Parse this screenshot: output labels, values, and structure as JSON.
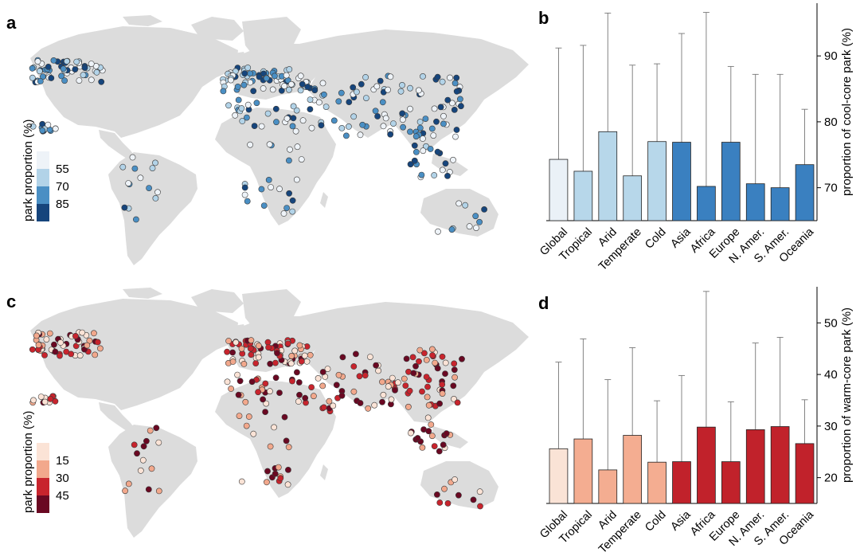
{
  "panel_labels": {
    "a": "a",
    "b": "b",
    "c": "c",
    "d": "d"
  },
  "legend_a": {
    "title": "park proportion (%)",
    "ticks": [
      "55",
      "70",
      "85"
    ],
    "colors": [
      "#eef3f8",
      "#b2d3e8",
      "#4a8fc4",
      "#16457c"
    ]
  },
  "legend_c": {
    "title": "park proportion (%)",
    "ticks": [
      "15",
      "30",
      "45"
    ],
    "colors": [
      "#fbe3d6",
      "#f2a88c",
      "#c8242d",
      "#6a0822"
    ]
  },
  "map_colors": {
    "land": "#dcdcdc",
    "marker_edge": "#3a3a3a"
  },
  "chart_data": [
    {
      "type": "bar",
      "panel": "b",
      "categories": [
        "Global",
        "Tropical",
        "Arid",
        "Temperate",
        "Cold",
        "Asia",
        "Africa",
        "Europe",
        "N. Amer.",
        "S. Amer.",
        "Oceania"
      ],
      "values": [
        74.3,
        72.5,
        78.5,
        71.8,
        77.0,
        76.9,
        70.2,
        76.9,
        70.6,
        70.0,
        73.5
      ],
      "error_upper": [
        91.2,
        91.6,
        96.5,
        88.6,
        88.8,
        93.4,
        96.6,
        88.4,
        87.2,
        87.2,
        81.9
      ],
      "colors": [
        "#eaf1f7",
        "#b7d7ea",
        "#b7d7ea",
        "#b7d7ea",
        "#b7d7ea",
        "#3a80c0",
        "#3a80c0",
        "#3a80c0",
        "#3a80c0",
        "#3a80c0",
        "#3a80c0"
      ],
      "ylabel": "proportion of cool-core park (%)",
      "ylim": [
        65,
        98
      ],
      "yticks": [
        70,
        80,
        90
      ],
      "grid": false
    },
    {
      "type": "bar",
      "panel": "d",
      "categories": [
        "Global",
        "Tropical",
        "Arid",
        "Temperate",
        "Cold",
        "Asia",
        "Africa",
        "Europe",
        "N. Amer.",
        "S. Amer.",
        "Oceania"
      ],
      "values": [
        25.6,
        27.5,
        21.5,
        28.2,
        23.0,
        23.1,
        29.8,
        23.1,
        29.3,
        29.9,
        26.6
      ],
      "error_upper": [
        42.4,
        46.9,
        39.0,
        45.2,
        34.9,
        39.8,
        56.1,
        34.7,
        46.1,
        47.2,
        35.1
      ],
      "colors": [
        "#fae3d6",
        "#f4ad91",
        "#f4ad91",
        "#f4ad91",
        "#f4ad91",
        "#c1222b",
        "#c1222b",
        "#c1222b",
        "#c1222b",
        "#c1222b",
        "#c1222b"
      ],
      "ylabel": "proportion of warm-core park (%)",
      "ylim": [
        15,
        57
      ],
      "yticks": [
        20,
        30,
        40,
        50
      ],
      "grid": false
    }
  ]
}
